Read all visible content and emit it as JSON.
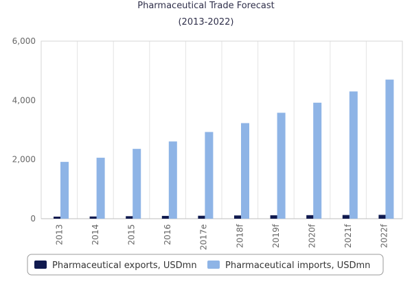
{
  "chart_data": {
    "type": "bar",
    "title": "Pharmaceutical Trade Forecast",
    "subtitle": "(2013-2022)",
    "xlabel": "",
    "ylabel": "",
    "categories": [
      "2013",
      "2014",
      "2015",
      "2016",
      "2017e",
      "2018f",
      "2019f",
      "2020f",
      "2021f",
      "2022f"
    ],
    "series": [
      {
        "name": "Pharmaceutical exports, USDmn",
        "color": "#101a4f",
        "values": [
          70,
          75,
          85,
          95,
          100,
          110,
          115,
          120,
          125,
          130
        ]
      },
      {
        "name": "Pharmaceutical imports, USDmn",
        "color": "#8eb4e6",
        "values": [
          1920,
          2060,
          2360,
          2610,
          2930,
          3230,
          3580,
          3920,
          4300,
          4700
        ]
      }
    ],
    "ylim": [
      0,
      6000
    ],
    "yticks": [
      0,
      2000,
      4000,
      6000
    ],
    "ytick_labels": [
      "0",
      "2,000",
      "4,000",
      "6,000"
    ],
    "grid": "vertical",
    "legend_position": "bottom"
  }
}
